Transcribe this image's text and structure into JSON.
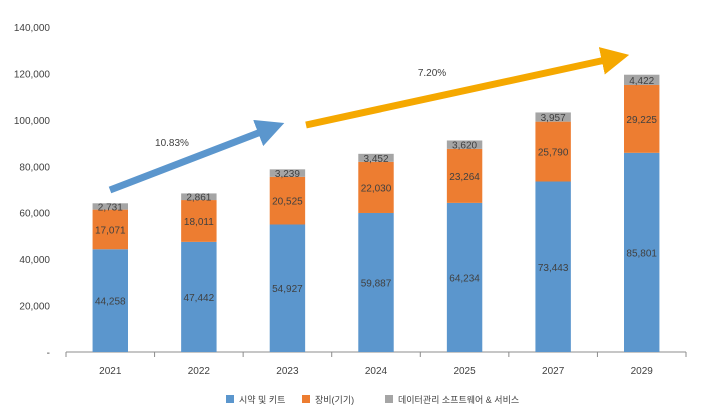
{
  "chart_data": {
    "type": "bar",
    "stacked": true,
    "categories": [
      "2021",
      "2022",
      "2023",
      "2024",
      "2025",
      "2027",
      "2029"
    ],
    "series": [
      {
        "name": "시약 및 키트",
        "color": "#5b96cd",
        "values": [
          44258,
          47442,
          54927,
          59887,
          64234,
          73443,
          85801
        ],
        "labels": [
          "44,258",
          "47,442",
          "54,927",
          "59,887",
          "64,234",
          "73,443",
          "85,801"
        ]
      },
      {
        "name": "장비(기기)",
        "color": "#ed7d31",
        "values": [
          17071,
          18011,
          20525,
          22030,
          23264,
          25790,
          29225
        ],
        "labels": [
          "17,071",
          "18,011",
          "20,525",
          "22,030",
          "23,264",
          "25,790",
          "29,225"
        ]
      },
      {
        "name": "데이터관리 소프트웨어 & 서비스",
        "color": "#a5a5a5",
        "values": [
          2731,
          2861,
          3239,
          3452,
          3620,
          3957,
          4422
        ],
        "labels": [
          "2,731",
          "2,861",
          "3,239",
          "3,452",
          "3,620",
          "3,957",
          "4,422"
        ]
      }
    ],
    "y_ticks": [
      {
        "value": 0,
        "label": "-"
      },
      {
        "value": 20000,
        "label": "20,000"
      },
      {
        "value": 40000,
        "label": "40,000"
      },
      {
        "value": 60000,
        "label": "60,000"
      },
      {
        "value": 80000,
        "label": "80,000"
      },
      {
        "value": 100000,
        "label": "100,000"
      },
      {
        "value": 120000,
        "label": "120,000"
      },
      {
        "value": 140000,
        "label": "140,000"
      }
    ],
    "ylim": [
      0,
      140000
    ],
    "grid": false,
    "legend_position": "bottom",
    "annotations": [
      {
        "text": "10.83%",
        "color": "#5b96cd",
        "from_category": "2021",
        "to_category": "2023"
      },
      {
        "text": "7.20%",
        "color": "#f5a800",
        "from_category": "2023",
        "to_category": "2029"
      }
    ]
  }
}
